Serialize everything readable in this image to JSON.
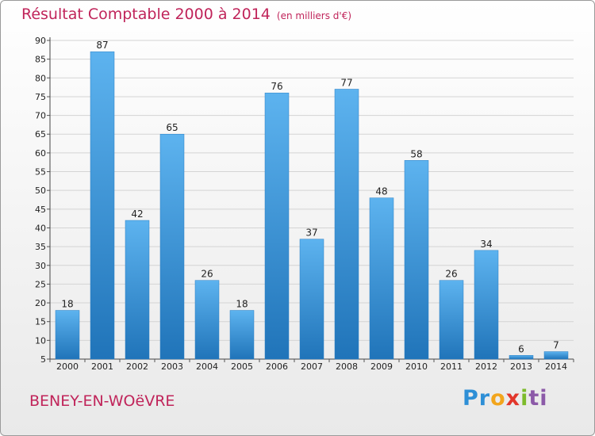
{
  "header": {
    "title": "Résultat Comptable 2000 à 2014",
    "unit": "(en milliers d'€)"
  },
  "commune": "BENEY-EN-WOëVRE",
  "brand": {
    "parts": [
      "Pr",
      "o",
      "x",
      "i",
      "ti"
    ]
  },
  "colors": {
    "bar_light": "#5db3ef",
    "bar_dark": "#2074b9",
    "title": "#c0245a"
  },
  "chart_data": {
    "type": "bar",
    "title": "Résultat Comptable 2000 à 2014",
    "categories": [
      "2000",
      "2001",
      "2002",
      "2003",
      "2004",
      "2005",
      "2006",
      "2007",
      "2008",
      "2009",
      "2010",
      "2011",
      "2012",
      "2013",
      "2014"
    ],
    "values": [
      18,
      87,
      42,
      65,
      26,
      18,
      76,
      37,
      77,
      48,
      58,
      26,
      34,
      6,
      7
    ],
    "ylim": [
      5,
      90
    ],
    "yticks": [
      5,
      10,
      15,
      20,
      25,
      30,
      35,
      40,
      45,
      50,
      55,
      60,
      65,
      70,
      75,
      80,
      85,
      90
    ],
    "grid": true,
    "data_labels": true
  }
}
